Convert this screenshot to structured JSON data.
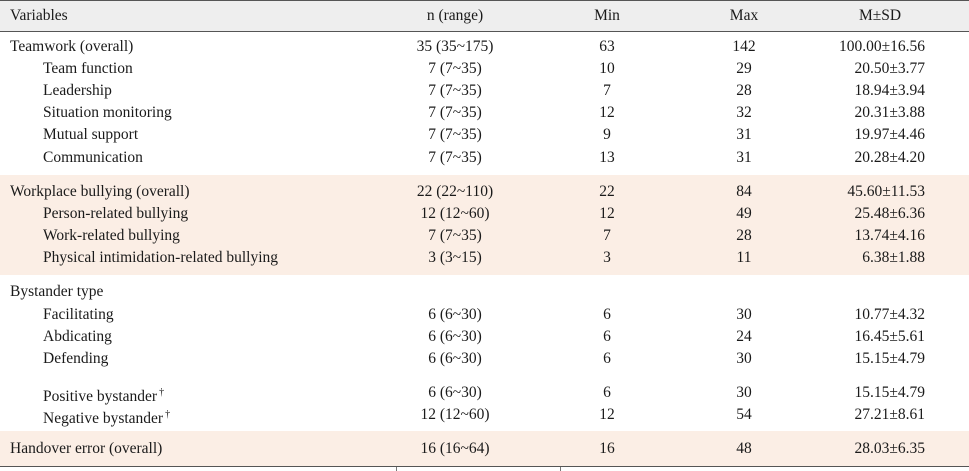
{
  "headers": {
    "variables": "Variables",
    "n_range": "n (range)",
    "min": "Min",
    "max": "Max",
    "msd": "M±SD"
  },
  "rows": [
    {
      "label": "Teamwork (overall)",
      "n": "35 (35~175)",
      "min": "63",
      "max": "142",
      "msd": "100.00±16.56"
    },
    {
      "label": "Team function",
      "n": "7 (7~35)",
      "min": "10",
      "max": "29",
      "msd": "20.50±3.77"
    },
    {
      "label": "Leadership",
      "n": "7 (7~35)",
      "min": "7",
      "max": "28",
      "msd": "18.94±3.94"
    },
    {
      "label": "Situation monitoring",
      "n": "7 (7~35)",
      "min": "12",
      "max": "32",
      "msd": "20.31±3.88"
    },
    {
      "label": "Mutual support",
      "n": "7 (7~35)",
      "min": "9",
      "max": "31",
      "msd": "19.97±4.46"
    },
    {
      "label": "Communication",
      "n": "7 (7~35)",
      "min": "13",
      "max": "31",
      "msd": "20.28±4.20"
    },
    {
      "label": "Workplace bullying (overall)",
      "n": "22 (22~110)",
      "min": "22",
      "max": "84",
      "msd": "45.60±11.53"
    },
    {
      "label": "Person-related bullying",
      "n": "12 (12~60)",
      "min": "12",
      "max": "49",
      "msd": "25.48±6.36"
    },
    {
      "label": "Work-related bullying",
      "n": "7 (7~35)",
      "min": "7",
      "max": "28",
      "msd": "13.74±4.16"
    },
    {
      "label": "Physical intimidation-related bullying",
      "n": "3 (3~15)",
      "min": "3",
      "max": "11",
      "msd": "6.38±1.88"
    },
    {
      "label": "Bystander type",
      "n": "",
      "min": "",
      "max": "",
      "msd": ""
    },
    {
      "label": "Facilitating",
      "n": "6 (6~30)",
      "min": "6",
      "max": "30",
      "msd": "10.77±4.32"
    },
    {
      "label": "Abdicating",
      "n": "6 (6~30)",
      "min": "6",
      "max": "24",
      "msd": "16.45±5.61"
    },
    {
      "label": "Defending",
      "n": "6 (6~30)",
      "min": "6",
      "max": "30",
      "msd": "15.15±4.79"
    },
    {
      "label": "Positive bystander",
      "mark": "†",
      "n": "6 (6~30)",
      "min": "6",
      "max": "30",
      "msd": "15.15±4.79"
    },
    {
      "label": "Negative bystander",
      "mark": "†",
      "n": "12 (12~60)",
      "min": "12",
      "max": "54",
      "msd": "27.21±8.61"
    },
    {
      "label": "Handover error (overall)",
      "n": "16 (16~64)",
      "min": "16",
      "max": "48",
      "msd": "28.03±6.35"
    }
  ],
  "colors": {
    "header_bg": "#eeeeee",
    "shade_bg": "#fbeee5",
    "rule": "#555555"
  }
}
